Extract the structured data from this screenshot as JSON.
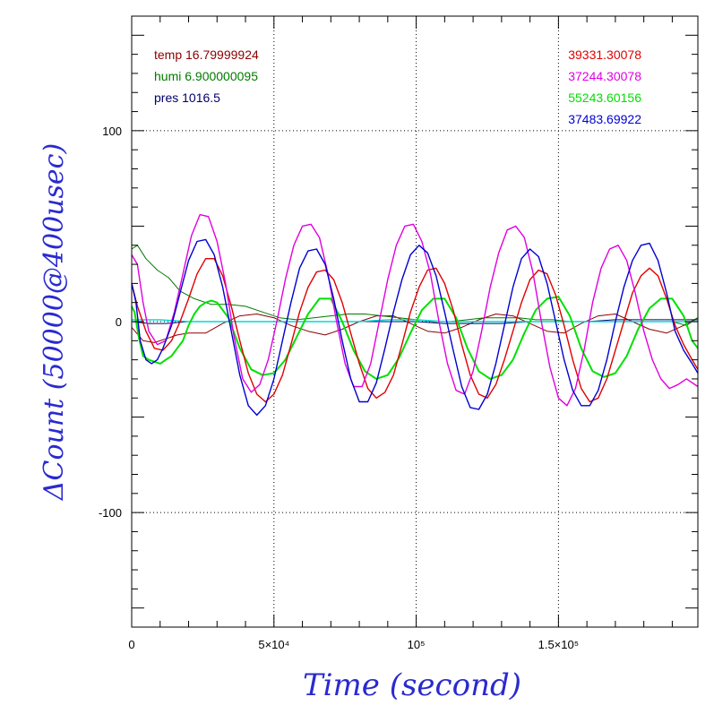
{
  "chart_data": {
    "type": "line",
    "xlabel": "Time (second)",
    "ylabel": "ΔCount (50000@400usec)",
    "xlim": [
      0,
      199000
    ],
    "ylim": [
      -160,
      160
    ],
    "x_ticks": [
      {
        "value": 0,
        "label": "0"
      },
      {
        "value": 50000,
        "label": "5×10⁴"
      },
      {
        "value": 100000,
        "label": "10⁵"
      },
      {
        "value": 150000,
        "label": "1.5×10⁵"
      }
    ],
    "y_ticks": [
      {
        "value": 100,
        "label": "100"
      },
      {
        "value": 0,
        "label": "0"
      },
      {
        "value": -100,
        "label": "-100"
      }
    ],
    "grid_x": [
      50000,
      100000,
      150000
    ],
    "grid_y": [
      100,
      0,
      -100
    ],
    "legend_left": [
      {
        "text": "temp 16.79999924",
        "color": "#8b0000"
      },
      {
        "text": "humi 6.900000095",
        "color": "#007a00"
      },
      {
        "text": "pres 1016.5",
        "color": "#00006b"
      }
    ],
    "legend_right": [
      {
        "text": "39331.30078",
        "color": "#e00000"
      },
      {
        "text": "37244.30078",
        "color": "#e000e0"
      },
      {
        "text": "55243.60156",
        "color": "#00e000"
      },
      {
        "text": "37483.69922",
        "color": "#0000d0"
      }
    ],
    "series": [
      {
        "key": "temp",
        "color": "#8b0000",
        "width": 1,
        "x": [
          0,
          4000,
          8000,
          12000,
          16000,
          20000,
          26000,
          32000,
          38000,
          44000,
          50000,
          56000,
          62000,
          68000,
          74000,
          80000,
          86000,
          92000,
          98000,
          104000,
          110000,
          116000,
          122000,
          128000,
          134000,
          140000,
          146000,
          152000,
          158000,
          164000,
          170000,
          176000,
          182000,
          188000,
          194000,
          199000
        ],
        "y": [
          -3,
          -10,
          -11,
          -9,
          -7,
          -6,
          -6,
          -1,
          3,
          4,
          2,
          -2,
          -5,
          -7,
          -4,
          0,
          3,
          3,
          -1,
          -5,
          -6,
          -3,
          1,
          4,
          3,
          -1,
          -5,
          -6,
          -1,
          3,
          4,
          0,
          -4,
          -6,
          -2,
          2
        ]
      },
      {
        "key": "humi",
        "color": "#007a00",
        "width": 1,
        "x": [
          0,
          2000,
          5000,
          9000,
          13000,
          17000,
          22000,
          28000,
          34000,
          40000,
          46000,
          52000,
          58000,
          64000,
          70000,
          76000,
          82000,
          88000,
          94000,
          100000,
          106000,
          112000,
          118000,
          124000,
          130000,
          136000,
          142000,
          148000,
          154000,
          160000,
          166000,
          172000,
          178000,
          184000,
          190000,
          195000,
          199000
        ],
        "y": [
          38,
          40,
          33,
          27,
          23,
          16,
          12,
          9,
          9,
          8,
          5,
          2,
          1,
          2,
          3,
          4,
          4,
          3,
          2,
          1,
          0,
          0,
          1,
          2,
          2,
          2,
          1,
          1,
          0,
          0,
          0,
          0,
          0,
          0,
          0,
          -2,
          2
        ]
      },
      {
        "key": "pres",
        "color": "#00006b",
        "width": 1,
        "x": [
          0,
          6000,
          12000,
          20000,
          30000,
          40000,
          50000,
          60000,
          70000,
          80000,
          90000,
          100000,
          110000,
          120000,
          130000,
          140000,
          150000,
          160000,
          170000,
          180000,
          190000,
          199000
        ],
        "y": [
          0,
          -1,
          -1,
          0,
          0,
          0,
          0,
          0,
          0,
          0,
          0,
          0,
          -1,
          -1,
          -1,
          0,
          0,
          0,
          1,
          1,
          1,
          1
        ]
      },
      {
        "key": "cyan",
        "color": "#00d8d8",
        "width": 1.4,
        "x": [
          0,
          10000,
          20000,
          30000,
          40000,
          50000,
          60000,
          70000,
          80000,
          90000,
          100000,
          110000,
          120000,
          130000,
          140000,
          150000,
          160000,
          170000,
          180000,
          190000,
          199000
        ],
        "y": [
          1,
          1,
          0,
          0,
          0,
          0,
          0,
          0,
          0,
          1,
          1,
          0,
          0,
          0,
          0,
          0,
          0,
          0,
          0,
          0,
          0
        ]
      },
      {
        "key": "green",
        "color": "#00e000",
        "width": 2,
        "x": [
          0,
          1000,
          2500,
          4000,
          6000,
          8000,
          10000,
          12000,
          14000,
          16000,
          18000,
          20000,
          22000,
          24000,
          26000,
          28000,
          30000,
          34000,
          38000,
          42000,
          46000,
          50000,
          54000,
          58000,
          62000,
          66000,
          70000,
          74000,
          78000,
          82000,
          86000,
          90000,
          94000,
          98000,
          102000,
          106000,
          110000,
          114000,
          118000,
          122000,
          126000,
          130000,
          134000,
          138000,
          142000,
          146000,
          150000,
          154000,
          158000,
          162000,
          166000,
          170000,
          174000,
          178000,
          182000,
          186000,
          190000,
          194000,
          197000,
          199000
        ],
        "y": [
          8,
          5,
          -8,
          -18,
          -20,
          -21,
          -22,
          -20,
          -18,
          -14,
          -10,
          -2,
          4,
          8,
          10,
          11,
          10,
          2,
          -14,
          -25,
          -28,
          -27,
          -20,
          -8,
          4,
          12,
          12,
          0,
          -15,
          -26,
          -30,
          -28,
          -19,
          -6,
          6,
          12,
          12,
          2,
          -14,
          -26,
          -30,
          -28,
          -20,
          -6,
          6,
          12,
          13,
          3,
          -14,
          -26,
          -29,
          -27,
          -18,
          -4,
          7,
          12,
          12,
          3,
          -10,
          -14
        ]
      },
      {
        "key": "red",
        "color": "#e00000",
        "width": 1.4,
        "x": [
          0,
          2000,
          5000,
          8000,
          11000,
          14000,
          17000,
          20000,
          23000,
          26000,
          29000,
          32000,
          35000,
          38000,
          41000,
          44000,
          47000,
          50000,
          53000,
          56000,
          59000,
          62000,
          65000,
          68000,
          71000,
          74000,
          77000,
          80000,
          83000,
          86000,
          89000,
          92000,
          95000,
          98000,
          101000,
          104000,
          107000,
          110000,
          113000,
          116000,
          119000,
          122000,
          125000,
          128000,
          131000,
          134000,
          137000,
          140000,
          143000,
          146000,
          149000,
          152000,
          155000,
          158000,
          161000,
          164000,
          167000,
          170000,
          173000,
          176000,
          179000,
          182000,
          185000,
          188000,
          191000,
          194000,
          197000,
          199000
        ],
        "y": [
          20,
          8,
          -5,
          -14,
          -15,
          -10,
          0,
          12,
          25,
          33,
          33,
          24,
          8,
          -10,
          -27,
          -38,
          -42,
          -38,
          -28,
          -12,
          5,
          18,
          26,
          27,
          22,
          10,
          -6,
          -22,
          -35,
          -40,
          -37,
          -28,
          -12,
          5,
          18,
          27,
          28,
          20,
          6,
          -12,
          -28,
          -38,
          -40,
          -33,
          -20,
          -5,
          10,
          22,
          27,
          25,
          14,
          -2,
          -20,
          -35,
          -42,
          -40,
          -30,
          -15,
          0,
          15,
          24,
          28,
          24,
          12,
          -2,
          -12,
          -20,
          -25
        ]
      },
      {
        "key": "magenta",
        "color": "#e000e0",
        "width": 1.4,
        "x": [
          0,
          2000,
          4000,
          6000,
          9000,
          12000,
          15000,
          18000,
          21000,
          24000,
          27000,
          30000,
          33000,
          36000,
          39000,
          42000,
          45000,
          48000,
          51000,
          54000,
          57000,
          60000,
          63000,
          66000,
          69000,
          72000,
          75000,
          78000,
          81000,
          84000,
          87000,
          90000,
          93000,
          96000,
          99000,
          102000,
          105000,
          108000,
          111000,
          114000,
          117000,
          120000,
          123000,
          126000,
          129000,
          132000,
          135000,
          138000,
          141000,
          144000,
          147000,
          150000,
          153000,
          156000,
          159000,
          162000,
          165000,
          168000,
          171000,
          174000,
          177000,
          180000,
          183000,
          186000,
          189000,
          192000,
          195000,
          199000
        ],
        "y": [
          35,
          30,
          10,
          -5,
          -12,
          -10,
          5,
          25,
          45,
          56,
          55,
          42,
          20,
          -8,
          -30,
          -37,
          -33,
          -20,
          0,
          22,
          40,
          50,
          51,
          44,
          25,
          0,
          -22,
          -34,
          -34,
          -22,
          0,
          22,
          40,
          50,
          51,
          42,
          25,
          0,
          -22,
          -36,
          -38,
          -26,
          -5,
          18,
          36,
          48,
          50,
          44,
          26,
          0,
          -24,
          -40,
          -44,
          -35,
          -15,
          10,
          28,
          38,
          40,
          32,
          15,
          -5,
          -20,
          -30,
          -35,
          -33,
          -30,
          -34
        ]
      },
      {
        "key": "blue",
        "color": "#0000d0",
        "width": 1.4,
        "x": [
          0,
          1500,
          3000,
          5000,
          7000,
          9000,
          11000,
          14000,
          17000,
          20000,
          23000,
          26000,
          29000,
          32000,
          35000,
          38000,
          41000,
          44000,
          47000,
          50000,
          53000,
          56000,
          59000,
          62000,
          65000,
          68000,
          71000,
          74000,
          77000,
          80000,
          83000,
          86000,
          89000,
          92000,
          95000,
          98000,
          101000,
          104000,
          107000,
          110000,
          113000,
          116000,
          119000,
          122000,
          125000,
          128000,
          131000,
          134000,
          137000,
          140000,
          143000,
          146000,
          149000,
          152000,
          155000,
          158000,
          161000,
          164000,
          167000,
          170000,
          173000,
          176000,
          179000,
          182000,
          185000,
          188000,
          191000,
          194000,
          197000,
          199000
        ],
        "y": [
          20,
          10,
          -10,
          -20,
          -22,
          -20,
          -14,
          -2,
          15,
          32,
          42,
          43,
          35,
          18,
          -5,
          -28,
          -44,
          -49,
          -44,
          -30,
          -10,
          10,
          28,
          37,
          38,
          30,
          12,
          -10,
          -30,
          -42,
          -42,
          -32,
          -14,
          5,
          22,
          35,
          40,
          36,
          24,
          5,
          -15,
          -34,
          -45,
          -46,
          -38,
          -22,
          -2,
          18,
          33,
          38,
          34,
          20,
          0,
          -20,
          -36,
          -44,
          -44,
          -36,
          -20,
          0,
          18,
          32,
          40,
          41,
          32,
          15,
          -5,
          -15,
          -22,
          -27
        ]
      }
    ]
  }
}
